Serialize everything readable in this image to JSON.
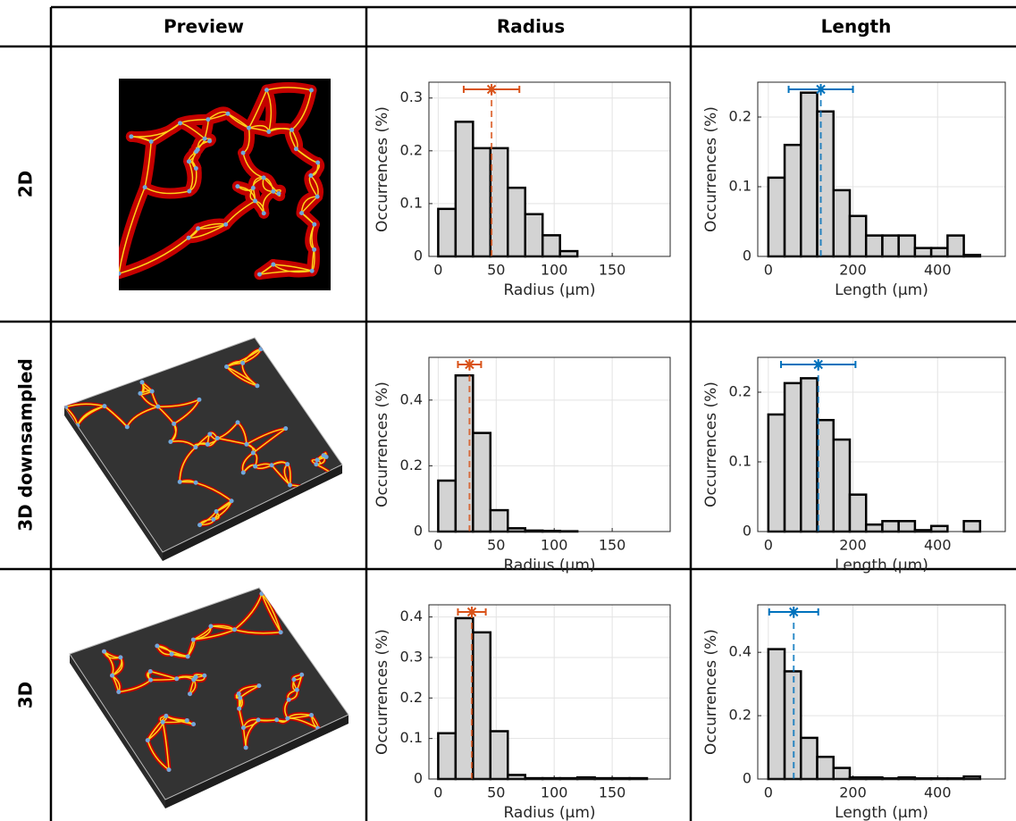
{
  "table": {
    "header": [
      "Preview",
      "Radius",
      "Length"
    ],
    "rows": [
      "2D",
      "3D downsampled",
      "3D"
    ]
  },
  "chart_data": [
    {
      "type": "histogram",
      "xlabel": "Radius (μm)",
      "ylabel": "Occurrences (%)",
      "color": "#d95319",
      "grid": true,
      "bins": [
        0,
        15,
        30,
        45,
        60,
        75,
        90,
        105,
        120,
        135,
        150,
        165,
        180
      ],
      "values": [
        0.09,
        0.255,
        0.205,
        0.205,
        0.13,
        0.08,
        0.04,
        0.01,
        0,
        0,
        0,
        0
      ],
      "mean": 46,
      "std": 24,
      "xlim": [
        -8,
        200
      ],
      "ylim": [
        0,
        0.33
      ],
      "xticks": [
        0,
        50,
        100,
        150
      ],
      "yticks": [
        0,
        0.1,
        0.2,
        0.3
      ]
    },
    {
      "type": "histogram",
      "xlabel": "Length (μm)",
      "ylabel": "Occurrences (%)",
      "color": "#0072bd",
      "grid": true,
      "bins": [
        0,
        38.5,
        77,
        115.5,
        154,
        192.5,
        231,
        269.5,
        308,
        346.5,
        385,
        423.5,
        462,
        500.5
      ],
      "values": [
        0.113,
        0.16,
        0.235,
        0.208,
        0.095,
        0.058,
        0.03,
        0.03,
        0.03,
        0.012,
        0.012,
        0.03,
        0.002
      ],
      "mean": 124,
      "std": 76,
      "xlim": [
        -25,
        560
      ],
      "ylim": [
        0,
        0.25
      ],
      "xticks": [
        0,
        200,
        400
      ],
      "yticks": [
        0,
        0.1,
        0.2
      ]
    },
    {
      "type": "histogram",
      "xlabel": "Radius (μm)",
      "ylabel": "Occurrences (%)",
      "color": "#d95319",
      "grid": true,
      "bins": [
        0,
        15,
        30,
        45,
        60,
        75,
        90,
        105,
        120,
        135,
        150,
        165,
        180
      ],
      "values": [
        0.155,
        0.475,
        0.3,
        0.065,
        0.01,
        0.003,
        0.002,
        0.001,
        0,
        0,
        0,
        0
      ],
      "mean": 27,
      "std": 10,
      "xlim": [
        -8,
        200
      ],
      "ylim": [
        0,
        0.53
      ],
      "xticks": [
        0,
        50,
        100,
        150
      ],
      "yticks": [
        0,
        0.2,
        0.4
      ]
    },
    {
      "type": "histogram",
      "xlabel": "Length (μm)",
      "ylabel": "Occurrences (%)",
      "color": "#0072bd",
      "grid": true,
      "bins": [
        0,
        38.5,
        77,
        115.5,
        154,
        192.5,
        231,
        269.5,
        308,
        346.5,
        385,
        423.5,
        462,
        500.5
      ],
      "values": [
        0.168,
        0.213,
        0.22,
        0.16,
        0.132,
        0.053,
        0.01,
        0.015,
        0.015,
        0.002,
        0.008,
        0,
        0.015
      ],
      "mean": 118,
      "std": 88,
      "xlim": [
        -25,
        560
      ],
      "ylim": [
        0,
        0.25
      ],
      "xticks": [
        0,
        200,
        400
      ],
      "yticks": [
        0,
        0.1,
        0.2
      ]
    },
    {
      "type": "histogram",
      "xlabel": "Radius (μm)",
      "ylabel": "Occurrences (%)",
      "color": "#d95319",
      "grid": true,
      "bins": [
        0,
        15,
        30,
        45,
        60,
        75,
        90,
        105,
        120,
        135,
        150,
        165,
        180
      ],
      "values": [
        0.113,
        0.397,
        0.362,
        0.118,
        0.01,
        0.002,
        0.002,
        0.002,
        0.004,
        0.002,
        0.002,
        0.002
      ],
      "mean": 29,
      "std": 12,
      "xlim": [
        -8,
        200
      ],
      "ylim": [
        0,
        0.43
      ],
      "xticks": [
        0,
        50,
        100,
        150
      ],
      "yticks": [
        0,
        0.1,
        0.2,
        0.3,
        0.4
      ]
    },
    {
      "type": "histogram",
      "xlabel": "Length (μm)",
      "ylabel": "Occurrences (%)",
      "color": "#0072bd",
      "grid": true,
      "bins": [
        0,
        38.5,
        77,
        115.5,
        154,
        192.5,
        231,
        269.5,
        308,
        346.5,
        385,
        423.5,
        462,
        500.5
      ],
      "values": [
        0.41,
        0.34,
        0.13,
        0.07,
        0.035,
        0.005,
        0.005,
        0.002,
        0.005,
        0.002,
        0.002,
        0.002,
        0.008
      ],
      "mean": 60,
      "std": 58,
      "xlim": [
        -25,
        560
      ],
      "ylim": [
        0,
        0.55
      ],
      "xticks": [
        0,
        200,
        400
      ],
      "yticks": [
        0,
        0.2,
        0.4
      ]
    }
  ]
}
